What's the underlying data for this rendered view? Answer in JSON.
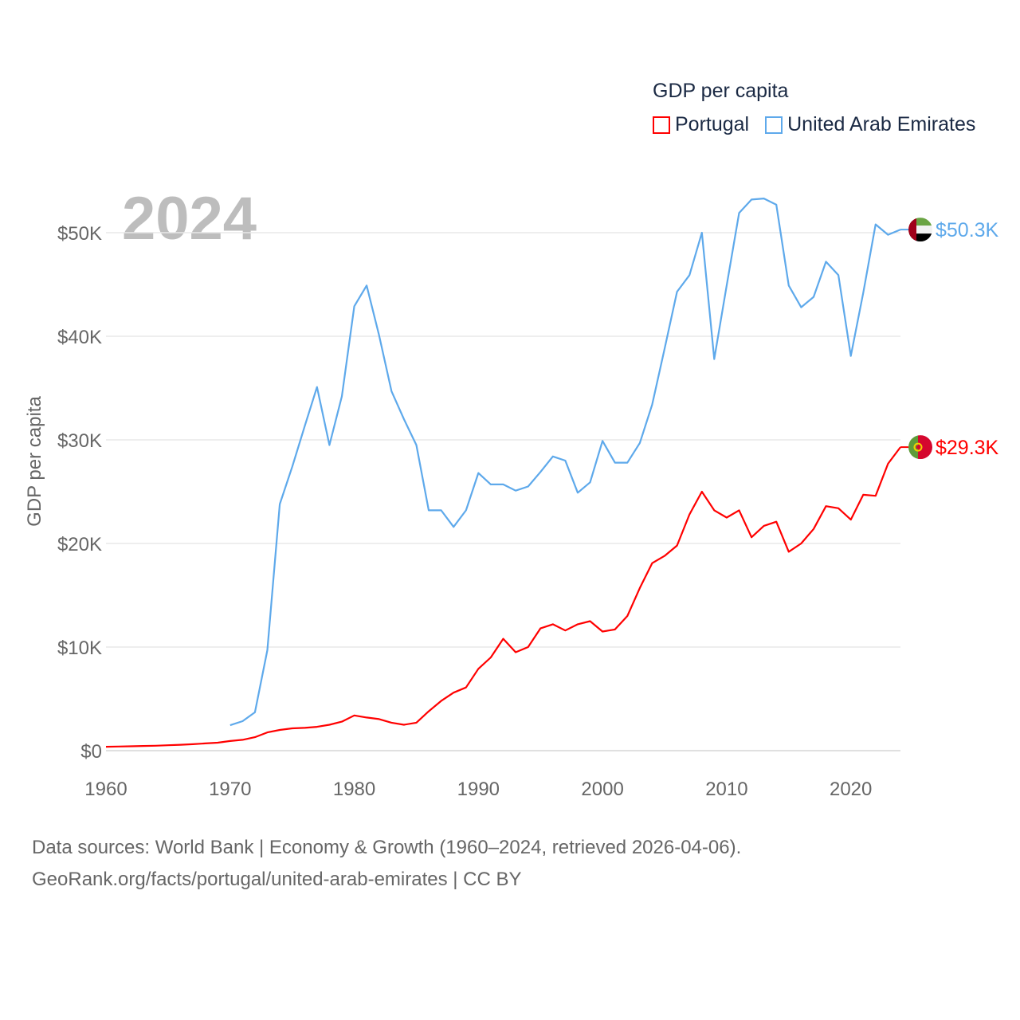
{
  "chart_data": {
    "type": "line",
    "title": "GDP per capita",
    "ylabel": "GDP per capita",
    "xlabel": "",
    "year_watermark": "2024",
    "ylim": [
      0,
      50000
    ],
    "xlim": [
      1960,
      2024
    ],
    "x_ticks": [
      "1960",
      "1970",
      "1980",
      "1990",
      "2000",
      "2010",
      "2020"
    ],
    "y_ticks": [
      {
        "v": 0,
        "label": "$0"
      },
      {
        "v": 10000,
        "label": "$10K"
      },
      {
        "v": 20000,
        "label": "$20K"
      },
      {
        "v": 30000,
        "label": "$30K"
      },
      {
        "v": 40000,
        "label": "$40K"
      },
      {
        "v": 50000,
        "label": "$50K"
      }
    ],
    "grid": true,
    "legend_position": "top-right",
    "series": [
      {
        "name": "Portugal",
        "color": "#ff0000",
        "end_label": "$29.3K",
        "start_year": 1960,
        "values": [
          380,
          400,
          420,
          450,
          480,
          520,
          570,
          620,
          700,
          770,
          930,
          1050,
          1300,
          1760,
          2000,
          2150,
          2200,
          2300,
          2500,
          2800,
          3400,
          3200,
          3050,
          2700,
          2500,
          2700,
          3800,
          4800,
          5600,
          6100,
          7900,
          9000,
          10800,
          9500,
          10000,
          11800,
          12200,
          11600,
          12200,
          12500,
          11500,
          11700,
          13000,
          15700,
          18100,
          18800,
          19800,
          22800,
          25000,
          23200,
          22500,
          23200,
          20600,
          21700,
          22100,
          19200,
          20000,
          21400,
          23600,
          23400,
          22300,
          24700,
          24600,
          27700,
          29300
        ]
      },
      {
        "name": "United Arab Emirates",
        "color": "#5ea9eb",
        "end_label": "$50.3K",
        "start_year": 1970,
        "values": [
          2450,
          2850,
          3700,
          9700,
          23800,
          27400,
          31300,
          35100,
          29500,
          34200,
          42900,
          44900,
          40100,
          34700,
          32000,
          29500,
          23200,
          23200,
          21600,
          23200,
          26800,
          25700,
          25700,
          25100,
          25500,
          26900,
          28400,
          28000,
          24900,
          25900,
          29900,
          27800,
          27800,
          29700,
          33400,
          38800,
          44300,
          45900,
          50000,
          37800,
          44900,
          51900,
          53200,
          53300,
          52700,
          44900,
          42800,
          43800,
          47200,
          45900,
          38100,
          44200,
          50800,
          49800,
          50300
        ]
      }
    ]
  },
  "footer": {
    "line1": "Data sources: World Bank | Economy & Growth (1960–2024, retrieved 2026-04-06).",
    "line2": "GeoRank.org/facts/portugal/united-arab-emirates | CC BY"
  }
}
